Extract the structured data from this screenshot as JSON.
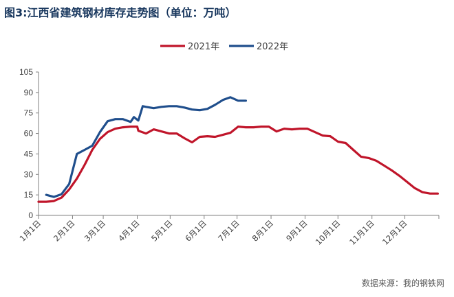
{
  "title": "图3:江西省建筑钢材库存走势图（单位：万吨）",
  "source": "数据来源：我的钢铁网",
  "colors": {
    "y2021": "#c0152a",
    "y2022": "#1f4e8c",
    "title": "#17365d"
  },
  "chart_data": {
    "type": "line",
    "title": "图3:江西省建筑钢材库存走势图（单位：万吨）",
    "xlabel": "",
    "ylabel": "",
    "ylim": [
      0,
      105
    ],
    "yticks": [
      0,
      15,
      30,
      45,
      60,
      75,
      90,
      105
    ],
    "x_tick_labels": [
      "1月1日",
      "2月1日",
      "3月1日",
      "4月1日",
      "5月1日",
      "6月1日",
      "7月1日",
      "8月1日",
      "9月1日",
      "10月1日",
      "11月1日",
      "12月1日"
    ],
    "x_tick_days": [
      1,
      32,
      60,
      91,
      121,
      152,
      182,
      213,
      244,
      274,
      305,
      335
    ],
    "x_range_days": [
      1,
      366
    ],
    "grid": false,
    "legend": "top-center",
    "series": [
      {
        "name": "2021年",
        "color": "#c0152a",
        "days": [
          1,
          8,
          15,
          22,
          29,
          36,
          43,
          50,
          57,
          64,
          71,
          78,
          85,
          91,
          92,
          99,
          106,
          113,
          120,
          127,
          134,
          141,
          148,
          155,
          162,
          169,
          176,
          183,
          190,
          197,
          204,
          211,
          218,
          225,
          232,
          239,
          246,
          253,
          260,
          267,
          274,
          281,
          288,
          295,
          302,
          309,
          316,
          323,
          330,
          337,
          344,
          351,
          358,
          365
        ],
        "values": [
          10,
          10,
          10.5,
          13,
          19,
          27,
          37,
          48,
          56,
          61,
          63.5,
          64.5,
          65,
          65,
          62,
          60,
          63,
          61.5,
          60,
          60,
          56.5,
          53.5,
          57.5,
          58,
          57.5,
          59,
          60.5,
          65,
          64.5,
          64.5,
          65,
          65,
          61.5,
          63.5,
          63,
          63.5,
          63.5,
          61,
          58.5,
          58,
          54,
          53,
          48,
          43,
          42,
          40,
          36.5,
          33,
          29,
          24.5,
          20,
          17,
          16,
          16
        ]
      },
      {
        "name": "2022年",
        "color": "#1f4e8c",
        "days": [
          8,
          15,
          22,
          29,
          36,
          43,
          50,
          57,
          64,
          71,
          78,
          85,
          88,
          92,
          96,
          99,
          106,
          113,
          120,
          127,
          134,
          141,
          148,
          155,
          162,
          169,
          176,
          183,
          190
        ],
        "values": [
          15,
          13.5,
          15.5,
          23,
          45,
          48,
          51,
          61,
          69,
          70.5,
          70.5,
          68.5,
          72,
          69.5,
          80,
          79.5,
          78.5,
          79.5,
          80,
          80,
          79,
          77.5,
          77,
          78,
          81,
          84.5,
          86.5,
          84,
          84
        ]
      }
    ]
  }
}
